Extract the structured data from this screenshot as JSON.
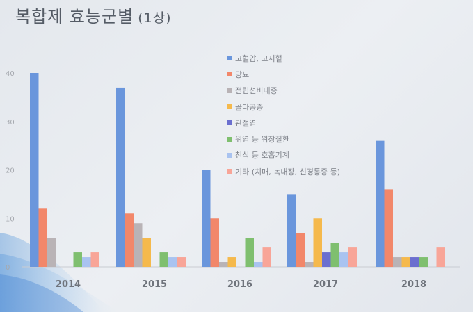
{
  "title": "복합제 효능군별",
  "subtitle": "(1상)",
  "chart_data": {
    "type": "bar",
    "title": "복합제 효능군별 (1상)",
    "categories": [
      "2014",
      "2015",
      "2016",
      "2017",
      "2018"
    ],
    "ylim": [
      0,
      40
    ],
    "yticks": [
      0,
      10,
      20,
      30,
      40
    ],
    "grid": false,
    "legend_position": "top-right",
    "series": [
      {
        "name": "고혈압, 고지혈",
        "color": "#6a96dc",
        "values": [
          40,
          37,
          20,
          15,
          26
        ]
      },
      {
        "name": "당뇨",
        "color": "#f2876a",
        "values": [
          12,
          11,
          10,
          7,
          16
        ]
      },
      {
        "name": "전립선비대증",
        "color": "#b9b3b6",
        "values": [
          6,
          9,
          1,
          1,
          2
        ]
      },
      {
        "name": "골다공증",
        "color": "#f5b94c",
        "values": [
          0,
          6,
          2,
          10,
          2
        ]
      },
      {
        "name": "관절염",
        "color": "#6b6fcf",
        "values": [
          0,
          0,
          0,
          3,
          2
        ]
      },
      {
        "name": "위염 등 위장질환",
        "color": "#7fbf6f",
        "values": [
          3,
          3,
          6,
          5,
          2
        ]
      },
      {
        "name": "천식 등 호흡기계",
        "color": "#a9c3f0",
        "values": [
          2,
          2,
          1,
          3,
          0
        ]
      },
      {
        "name": "기타 (치매, 녹내장, 신경통증 등)",
        "color": "#f8a598",
        "values": [
          3,
          2,
          4,
          4,
          4
        ]
      }
    ]
  }
}
